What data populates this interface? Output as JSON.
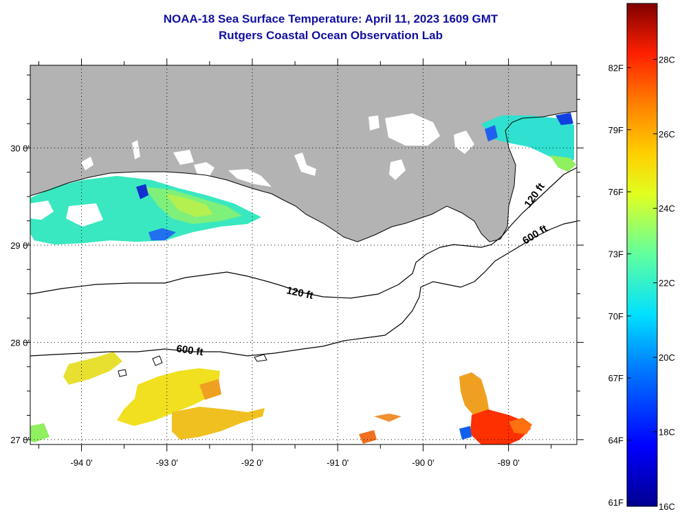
{
  "header": {
    "title": "NOAA-18 Sea Surface Temperature:  April 11, 2023 1609 GMT",
    "subtitle": "Rutgers Coastal Ocean Observation Lab"
  },
  "map": {
    "lon_range": [
      -94.6,
      -88.2
    ],
    "lat_range": [
      26.95,
      30.85
    ],
    "lon_ticks": [
      -94,
      -93,
      -92,
      -91,
      -90,
      -89
    ],
    "lon_labels": [
      "-94 0'",
      "-93 0'",
      "-92 0'",
      "-91 0'",
      "-90 0'",
      "-89 0'"
    ],
    "lat_ticks": [
      27,
      28,
      29,
      30
    ],
    "lat_labels": [
      "27 0'",
      "28 0'",
      "29 0'",
      "30 0'"
    ],
    "contour_labels": [
      "120 ft",
      "600 ft",
      "120 ft",
      "600 ft"
    ],
    "colors": {
      "land": "#b3b3b3",
      "cloud": "#ffffff",
      "border": "#000000"
    }
  },
  "colorbar": {
    "fahrenheit_labels": [
      "82F",
      "79F",
      "76F",
      "73F",
      "70F",
      "67F",
      "64F",
      "61F"
    ],
    "celsius_labels": [
      "28C",
      "26C",
      "24C",
      "22C",
      "20C",
      "18C",
      "16C"
    ],
    "range_c": [
      16,
      29.5
    ]
  }
}
